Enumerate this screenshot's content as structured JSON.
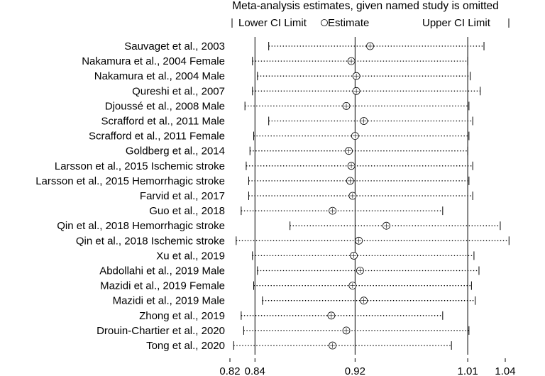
{
  "chart_data": {
    "type": "forest",
    "title": "Meta-analysis estimates, given named study is omitted",
    "legend": {
      "lower": "Lower CI Limit",
      "estimate": "Estimate",
      "upper": "Upper CI Limit"
    },
    "reference_lines": {
      "lower": 0.84,
      "estimate": 0.92,
      "upper": 1.01
    },
    "x_ticks": [
      "0.82",
      "0.84",
      "0.92",
      "1.01",
      "1.04"
    ],
    "xlim": [
      0.82,
      1.04
    ],
    "studies": [
      {
        "label": "Sauvaget et al., 2003",
        "lower": 0.851,
        "estimate": 0.932,
        "upper": 1.023
      },
      {
        "label": "Nakamura et al., 2004 Female",
        "lower": 0.838,
        "estimate": 0.917,
        "upper": 1.01
      },
      {
        "label": "Nakamura et al., 2004 Male",
        "lower": 0.842,
        "estimate": 0.921,
        "upper": 1.012
      },
      {
        "label": "Qureshi et al., 2007",
        "lower": 0.838,
        "estimate": 0.921,
        "upper": 1.02
      },
      {
        "label": "Djoussé et al., 2008 Male",
        "lower": 0.832,
        "estimate": 0.913,
        "upper": 1.011
      },
      {
        "label": "Scrafford et al., 2011 Male",
        "lower": 0.851,
        "estimate": 0.927,
        "upper": 1.014
      },
      {
        "label": "Scrafford et al., 2011 Female",
        "lower": 0.839,
        "estimate": 0.92,
        "upper": 1.011
      },
      {
        "label": "Goldberg et al., 2014",
        "lower": 0.836,
        "estimate": 0.915,
        "upper": 1.01
      },
      {
        "label": "Larsson et al., 2015 Ischemic stroke",
        "lower": 0.833,
        "estimate": 0.917,
        "upper": 1.014
      },
      {
        "label": "Larsson et al., 2015 Hemorrhagic stroke",
        "lower": 0.835,
        "estimate": 0.916,
        "upper": 1.011
      },
      {
        "label": "Farvid et al., 2017",
        "lower": 0.835,
        "estimate": 0.918,
        "upper": 1.014
      },
      {
        "label": "Guo et al., 2018",
        "lower": 0.829,
        "estimate": 0.902,
        "upper": 0.99
      },
      {
        "label": "Qin et al., 2018 Hemorrhagic stroke",
        "lower": 0.868,
        "estimate": 0.945,
        "upper": 1.036
      },
      {
        "label": "Qin et al., 2018 Ischemic stroke",
        "lower": 0.825,
        "estimate": 0.923,
        "upper": 1.043
      },
      {
        "label": "Xu et al., 2019",
        "lower": 0.838,
        "estimate": 0.919,
        "upper": 1.015
      },
      {
        "label": "Abdollahi et al., 2019 Male",
        "lower": 0.842,
        "estimate": 0.924,
        "upper": 1.019
      },
      {
        "label": "Mazidi et  al., 2019 Female",
        "lower": 0.839,
        "estimate": 0.918,
        "upper": 1.013
      },
      {
        "label": "Mazidi et  al., 2019 Male",
        "lower": 0.846,
        "estimate": 0.927,
        "upper": 1.016
      },
      {
        "label": "Zhong et al., 2019",
        "lower": 0.829,
        "estimate": 0.901,
        "upper": 0.99
      },
      {
        "label": "Drouin-Chartier et al., 2020",
        "lower": 0.831,
        "estimate": 0.913,
        "upper": 1.011
      },
      {
        "label": "Tong et al., 2020",
        "lower": 0.823,
        "estimate": 0.902,
        "upper": 0.997
      }
    ]
  }
}
